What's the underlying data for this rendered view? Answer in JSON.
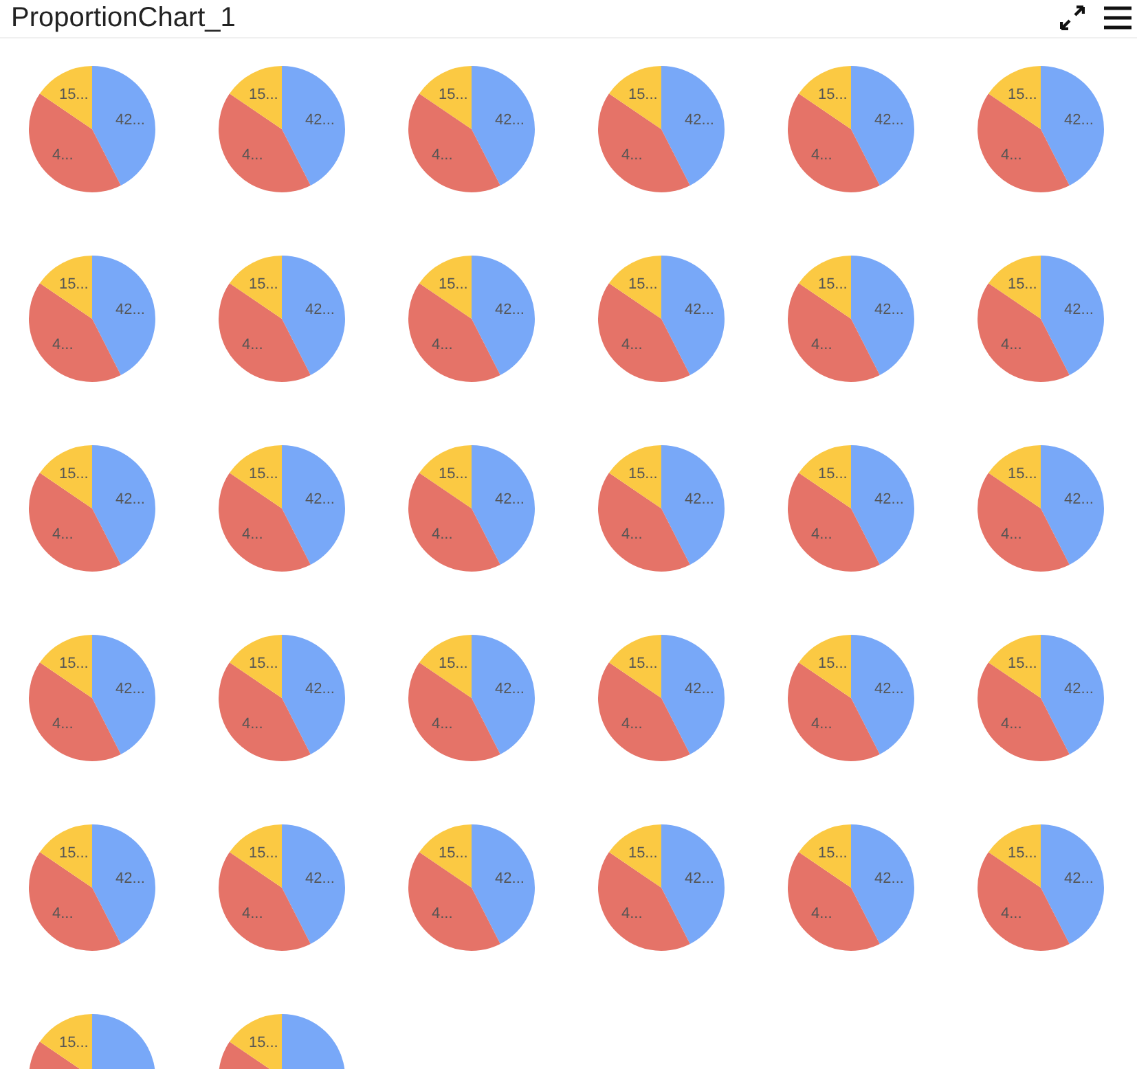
{
  "chart_data": [
    {
      "type": "pie",
      "title": "ProportionChart_1",
      "categories": [
        null,
        null,
        null
      ],
      "values": [
        42.5,
        42,
        15.5
      ],
      "colors": [
        "#78a8f8",
        "#e57368",
        "#fbc943"
      ],
      "value_labels": [
        "42...",
        "4...",
        "15..."
      ]
    },
    {
      "type": "pie",
      "categories": [
        null,
        null,
        null
      ],
      "values": [
        42.5,
        42,
        15.5
      ],
      "colors": [
        "#78a8f8",
        "#e57368",
        "#fbc943"
      ],
      "value_labels": [
        "42...",
        "4...",
        "15..."
      ]
    },
    {
      "type": "pie",
      "categories": [
        null,
        null,
        null
      ],
      "values": [
        42.5,
        42,
        15.5
      ],
      "colors": [
        "#78a8f8",
        "#e57368",
        "#fbc943"
      ],
      "value_labels": [
        "42...",
        "4...",
        "15..."
      ]
    },
    {
      "type": "pie",
      "categories": [
        null,
        null,
        null
      ],
      "values": [
        42.5,
        42,
        15.5
      ],
      "colors": [
        "#78a8f8",
        "#e57368",
        "#fbc943"
      ],
      "value_labels": [
        "42...",
        "4...",
        "15..."
      ]
    },
    {
      "type": "pie",
      "categories": [
        null,
        null,
        null
      ],
      "values": [
        42.5,
        42,
        15.5
      ],
      "colors": [
        "#78a8f8",
        "#e57368",
        "#fbc943"
      ],
      "value_labels": [
        "42...",
        "4...",
        "15..."
      ]
    },
    {
      "type": "pie",
      "categories": [
        null,
        null,
        null
      ],
      "values": [
        42.5,
        42,
        15.5
      ],
      "colors": [
        "#78a8f8",
        "#e57368",
        "#fbc943"
      ],
      "value_labels": [
        "42...",
        "4...",
        "15..."
      ]
    },
    {
      "type": "pie",
      "categories": [
        null,
        null,
        null
      ],
      "values": [
        42.5,
        42,
        15.5
      ],
      "colors": [
        "#78a8f8",
        "#e57368",
        "#fbc943"
      ],
      "value_labels": [
        "42...",
        "4...",
        "15..."
      ]
    },
    {
      "type": "pie",
      "categories": [
        null,
        null,
        null
      ],
      "values": [
        42.5,
        42,
        15.5
      ],
      "colors": [
        "#78a8f8",
        "#e57368",
        "#fbc943"
      ],
      "value_labels": [
        "42...",
        "4...",
        "15..."
      ]
    },
    {
      "type": "pie",
      "categories": [
        null,
        null,
        null
      ],
      "values": [
        42.5,
        42,
        15.5
      ],
      "colors": [
        "#78a8f8",
        "#e57368",
        "#fbc943"
      ],
      "value_labels": [
        "42...",
        "4...",
        "15..."
      ]
    },
    {
      "type": "pie",
      "categories": [
        null,
        null,
        null
      ],
      "values": [
        42.5,
        42,
        15.5
      ],
      "colors": [
        "#78a8f8",
        "#e57368",
        "#fbc943"
      ],
      "value_labels": [
        "42...",
        "4...",
        "15..."
      ]
    },
    {
      "type": "pie",
      "categories": [
        null,
        null,
        null
      ],
      "values": [
        42.5,
        42,
        15.5
      ],
      "colors": [
        "#78a8f8",
        "#e57368",
        "#fbc943"
      ],
      "value_labels": [
        "42...",
        "4...",
        "15..."
      ]
    },
    {
      "type": "pie",
      "categories": [
        null,
        null,
        null
      ],
      "values": [
        42.5,
        42,
        15.5
      ],
      "colors": [
        "#78a8f8",
        "#e57368",
        "#fbc943"
      ],
      "value_labels": [
        "42...",
        "4...",
        "15..."
      ]
    },
    {
      "type": "pie",
      "categories": [
        null,
        null,
        null
      ],
      "values": [
        42.5,
        42,
        15.5
      ],
      "colors": [
        "#78a8f8",
        "#e57368",
        "#fbc943"
      ],
      "value_labels": [
        "42...",
        "4...",
        "15..."
      ]
    },
    {
      "type": "pie",
      "categories": [
        null,
        null,
        null
      ],
      "values": [
        42.5,
        42,
        15.5
      ],
      "colors": [
        "#78a8f8",
        "#e57368",
        "#fbc943"
      ],
      "value_labels": [
        "42...",
        "4...",
        "15..."
      ]
    },
    {
      "type": "pie",
      "categories": [
        null,
        null,
        null
      ],
      "values": [
        42.5,
        42,
        15.5
      ],
      "colors": [
        "#78a8f8",
        "#e57368",
        "#fbc943"
      ],
      "value_labels": [
        "42...",
        "4...",
        "15..."
      ]
    },
    {
      "type": "pie",
      "categories": [
        null,
        null,
        null
      ],
      "values": [
        42.5,
        42,
        15.5
      ],
      "colors": [
        "#78a8f8",
        "#e57368",
        "#fbc943"
      ],
      "value_labels": [
        "42...",
        "4...",
        "15..."
      ]
    },
    {
      "type": "pie",
      "categories": [
        null,
        null,
        null
      ],
      "values": [
        42.5,
        42,
        15.5
      ],
      "colors": [
        "#78a8f8",
        "#e57368",
        "#fbc943"
      ],
      "value_labels": [
        "42...",
        "4...",
        "15..."
      ]
    },
    {
      "type": "pie",
      "categories": [
        null,
        null,
        null
      ],
      "values": [
        42.5,
        42,
        15.5
      ],
      "colors": [
        "#78a8f8",
        "#e57368",
        "#fbc943"
      ],
      "value_labels": [
        "42...",
        "4...",
        "15..."
      ]
    },
    {
      "type": "pie",
      "categories": [
        null,
        null,
        null
      ],
      "values": [
        42.5,
        42,
        15.5
      ],
      "colors": [
        "#78a8f8",
        "#e57368",
        "#fbc943"
      ],
      "value_labels": [
        "42...",
        "4...",
        "15..."
      ]
    },
    {
      "type": "pie",
      "categories": [
        null,
        null,
        null
      ],
      "values": [
        42.5,
        42,
        15.5
      ],
      "colors": [
        "#78a8f8",
        "#e57368",
        "#fbc943"
      ],
      "value_labels": [
        "42...",
        "4...",
        "15..."
      ]
    },
    {
      "type": "pie",
      "categories": [
        null,
        null,
        null
      ],
      "values": [
        42.5,
        42,
        15.5
      ],
      "colors": [
        "#78a8f8",
        "#e57368",
        "#fbc943"
      ],
      "value_labels": [
        "42...",
        "4...",
        "15..."
      ]
    },
    {
      "type": "pie",
      "categories": [
        null,
        null,
        null
      ],
      "values": [
        42.5,
        42,
        15.5
      ],
      "colors": [
        "#78a8f8",
        "#e57368",
        "#fbc943"
      ],
      "value_labels": [
        "42...",
        "4...",
        "15..."
      ]
    },
    {
      "type": "pie",
      "categories": [
        null,
        null,
        null
      ],
      "values": [
        42.5,
        42,
        15.5
      ],
      "colors": [
        "#78a8f8",
        "#e57368",
        "#fbc943"
      ],
      "value_labels": [
        "42...",
        "4...",
        "15..."
      ]
    },
    {
      "type": "pie",
      "categories": [
        null,
        null,
        null
      ],
      "values": [
        42.5,
        42,
        15.5
      ],
      "colors": [
        "#78a8f8",
        "#e57368",
        "#fbc943"
      ],
      "value_labels": [
        "42...",
        "4...",
        "15..."
      ]
    },
    {
      "type": "pie",
      "categories": [
        null,
        null,
        null
      ],
      "values": [
        42.5,
        42,
        15.5
      ],
      "colors": [
        "#78a8f8",
        "#e57368",
        "#fbc943"
      ],
      "value_labels": [
        "42...",
        "4...",
        "15..."
      ]
    },
    {
      "type": "pie",
      "categories": [
        null,
        null,
        null
      ],
      "values": [
        42.5,
        42,
        15.5
      ],
      "colors": [
        "#78a8f8",
        "#e57368",
        "#fbc943"
      ],
      "value_labels": [
        "42...",
        "4...",
        "15..."
      ]
    },
    {
      "type": "pie",
      "categories": [
        null,
        null,
        null
      ],
      "values": [
        42.5,
        42,
        15.5
      ],
      "colors": [
        "#78a8f8",
        "#e57368",
        "#fbc943"
      ],
      "value_labels": [
        "42...",
        "4...",
        "15..."
      ]
    },
    {
      "type": "pie",
      "categories": [
        null,
        null,
        null
      ],
      "values": [
        42.5,
        42,
        15.5
      ],
      "colors": [
        "#78a8f8",
        "#e57368",
        "#fbc943"
      ],
      "value_labels": [
        "42...",
        "4...",
        "15..."
      ]
    },
    {
      "type": "pie",
      "categories": [
        null,
        null,
        null
      ],
      "values": [
        42.5,
        42,
        15.5
      ],
      "colors": [
        "#78a8f8",
        "#e57368",
        "#fbc943"
      ],
      "value_labels": [
        "42...",
        "4...",
        "15..."
      ]
    },
    {
      "type": "pie",
      "categories": [
        null,
        null,
        null
      ],
      "values": [
        42.5,
        42,
        15.5
      ],
      "colors": [
        "#78a8f8",
        "#e57368",
        "#fbc943"
      ],
      "value_labels": [
        "42...",
        "4...",
        "15..."
      ]
    },
    {
      "type": "pie",
      "categories": [
        null,
        null,
        null
      ],
      "values": [
        42.5,
        42,
        15.5
      ],
      "colors": [
        "#78a8f8",
        "#e57368",
        "#fbc943"
      ],
      "value_labels": [
        null,
        null,
        "15..."
      ]
    },
    {
      "type": "pie",
      "categories": [
        null,
        null,
        null
      ],
      "values": [
        42.5,
        42,
        15.5
      ],
      "colors": [
        "#78a8f8",
        "#e57368",
        "#fbc943"
      ],
      "value_labels": [
        null,
        null,
        "15..."
      ]
    }
  ]
}
